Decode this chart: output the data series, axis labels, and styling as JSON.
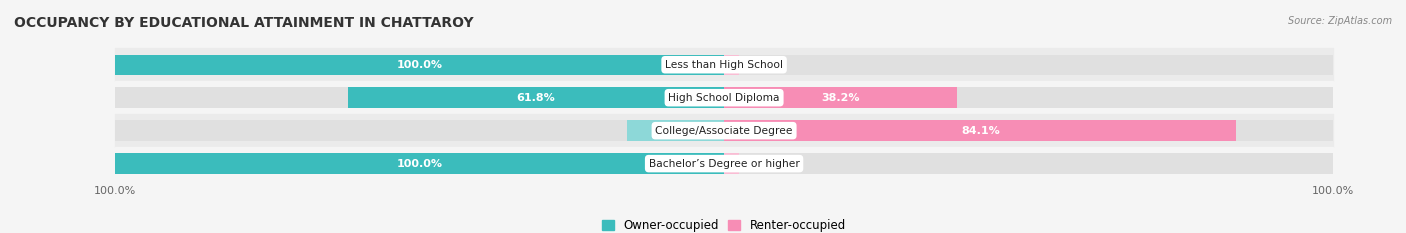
{
  "title": "OCCUPANCY BY EDUCATIONAL ATTAINMENT IN CHATTAROY",
  "source": "Source: ZipAtlas.com",
  "categories": [
    "Less than High School",
    "High School Diploma",
    "College/Associate Degree",
    "Bachelor’s Degree or higher"
  ],
  "owner_values": [
    100.0,
    61.8,
    15.9,
    100.0
  ],
  "renter_values": [
    0.0,
    38.2,
    84.1,
    0.0
  ],
  "owner_color": "#3bbcbc",
  "owner_color_light": "#8dd8d8",
  "renter_color": "#f78db5",
  "renter_color_light": "#f9bdd4",
  "bar_bg_color": "#e0e0e0",
  "row_bg_even": "#ebebeb",
  "row_bg_odd": "#f5f5f5",
  "background_color": "#f5f5f5",
  "title_fontsize": 10,
  "label_fontsize": 8,
  "tick_fontsize": 8,
  "legend_fontsize": 8.5
}
